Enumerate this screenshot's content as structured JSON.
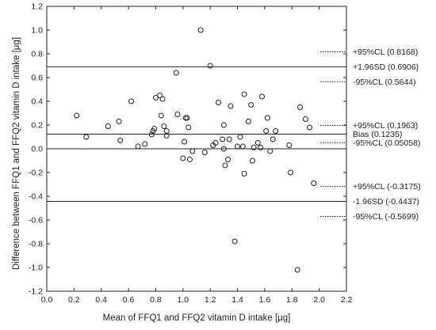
{
  "chart_data": {
    "type": "scatter",
    "title": "",
    "xlabel": "Mean of FFQ1 and FFQ2 vitamin D intake [µg]",
    "ylabel": "Difference between FFQ1 and FFQ2 vitamin D intake [µg]",
    "xlim": [
      0.0,
      2.2
    ],
    "ylim": [
      -1.2,
      1.2
    ],
    "x_ticks": [
      "0.0",
      "0.2",
      "0.4",
      "0.6",
      "0.8",
      "1.0",
      "1.2",
      "1.4",
      "1.6",
      "1.8",
      "2.0",
      "2.2"
    ],
    "y_ticks": [
      "-1.2",
      "-1.0",
      "-0.8",
      "-0.6",
      "-0.4",
      "-0.2",
      "0.0",
      "0.2",
      "0.4",
      "0.6",
      "0.8",
      "1.0",
      "1.2"
    ],
    "grid": false,
    "points": [
      {
        "x": 0.22,
        "y": 0.28
      },
      {
        "x": 0.29,
        "y": 0.1
      },
      {
        "x": 0.45,
        "y": 0.19
      },
      {
        "x": 0.53,
        "y": 0.23
      },
      {
        "x": 0.54,
        "y": 0.07
      },
      {
        "x": 0.62,
        "y": 0.4
      },
      {
        "x": 0.67,
        "y": 0.02
      },
      {
        "x": 0.72,
        "y": 0.04
      },
      {
        "x": 0.77,
        "y": 0.12
      },
      {
        "x": 0.78,
        "y": 0.15
      },
      {
        "x": 0.79,
        "y": 0.17
      },
      {
        "x": 0.8,
        "y": 0.43
      },
      {
        "x": 0.83,
        "y": 0.45
      },
      {
        "x": 0.84,
        "y": 0.28
      },
      {
        "x": 0.85,
        "y": 0.42
      },
      {
        "x": 0.86,
        "y": 0.19
      },
      {
        "x": 0.88,
        "y": 0.15
      },
      {
        "x": 0.88,
        "y": 0.11
      },
      {
        "x": 0.95,
        "y": 0.64
      },
      {
        "x": 0.96,
        "y": 0.29
      },
      {
        "x": 1.0,
        "y": -0.08
      },
      {
        "x": 1.01,
        "y": 0.06
      },
      {
        "x": 1.02,
        "y": 0.26
      },
      {
        "x": 1.03,
        "y": 0.26
      },
      {
        "x": 1.04,
        "y": 0.18
      },
      {
        "x": 1.05,
        "y": -0.09
      },
      {
        "x": 1.07,
        "y": -0.02
      },
      {
        "x": 1.13,
        "y": 1.0
      },
      {
        "x": 1.16,
        "y": -0.03
      },
      {
        "x": 1.2,
        "y": 0.7
      },
      {
        "x": 1.22,
        "y": 0.03
      },
      {
        "x": 1.24,
        "y": 0.05
      },
      {
        "x": 1.26,
        "y": 0.39
      },
      {
        "x": 1.29,
        "y": 0.08
      },
      {
        "x": 1.3,
        "y": 0.2
      },
      {
        "x": 1.3,
        "y": 0.0
      },
      {
        "x": 1.31,
        "y": -0.14
      },
      {
        "x": 1.33,
        "y": -0.09
      },
      {
        "x": 1.34,
        "y": 0.08
      },
      {
        "x": 1.35,
        "y": 0.36
      },
      {
        "x": 1.38,
        "y": -0.78
      },
      {
        "x": 1.4,
        "y": 0.02
      },
      {
        "x": 1.42,
        "y": 0.1
      },
      {
        "x": 1.44,
        "y": 0.02
      },
      {
        "x": 1.45,
        "y": 0.46
      },
      {
        "x": 1.45,
        "y": -0.21
      },
      {
        "x": 1.48,
        "y": 0.23
      },
      {
        "x": 1.5,
        "y": 0.37
      },
      {
        "x": 1.51,
        "y": -0.1
      },
      {
        "x": 1.52,
        "y": 0.01
      },
      {
        "x": 1.55,
        "y": 0.05
      },
      {
        "x": 1.57,
        "y": 0.01
      },
      {
        "x": 1.58,
        "y": 0.44
      },
      {
        "x": 1.61,
        "y": 0.15
      },
      {
        "x": 1.62,
        "y": 0.26
      },
      {
        "x": 1.64,
        "y": -0.02
      },
      {
        "x": 1.66,
        "y": 0.08
      },
      {
        "x": 1.68,
        "y": 0.15
      },
      {
        "x": 1.78,
        "y": 0.03
      },
      {
        "x": 1.79,
        "y": -0.2
      },
      {
        "x": 1.84,
        "y": -1.02
      },
      {
        "x": 1.86,
        "y": 0.35
      },
      {
        "x": 1.9,
        "y": 0.25
      },
      {
        "x": 1.93,
        "y": 0.18
      },
      {
        "x": 1.96,
        "y": -0.29
      }
    ],
    "reference_lines": [
      {
        "y": 0.0,
        "style": "solid",
        "label": ""
      },
      {
        "y": 0.6906,
        "style": "solid",
        "label": "+1.96SD (0.6906)"
      },
      {
        "y": 0.1235,
        "style": "solid",
        "label": "Bias (0.1235)"
      },
      {
        "y": -0.4437,
        "style": "solid",
        "label": "-1.96SD (-0.4437)"
      }
    ],
    "confidence_marks": [
      {
        "y": 0.8168,
        "label": "+95%CL (0.8168)"
      },
      {
        "y": 0.5644,
        "label": "-95%CL (0.5644)"
      },
      {
        "y": 0.1963,
        "label": "+95%CL (0.1963)"
      },
      {
        "y": 0.05058,
        "label": "-95%CL (0.05058)"
      },
      {
        "y": -0.3175,
        "label": "+95%CL (-0.3175)"
      },
      {
        "y": -0.5699,
        "label": "-95%CL (-0.5699)"
      }
    ]
  }
}
